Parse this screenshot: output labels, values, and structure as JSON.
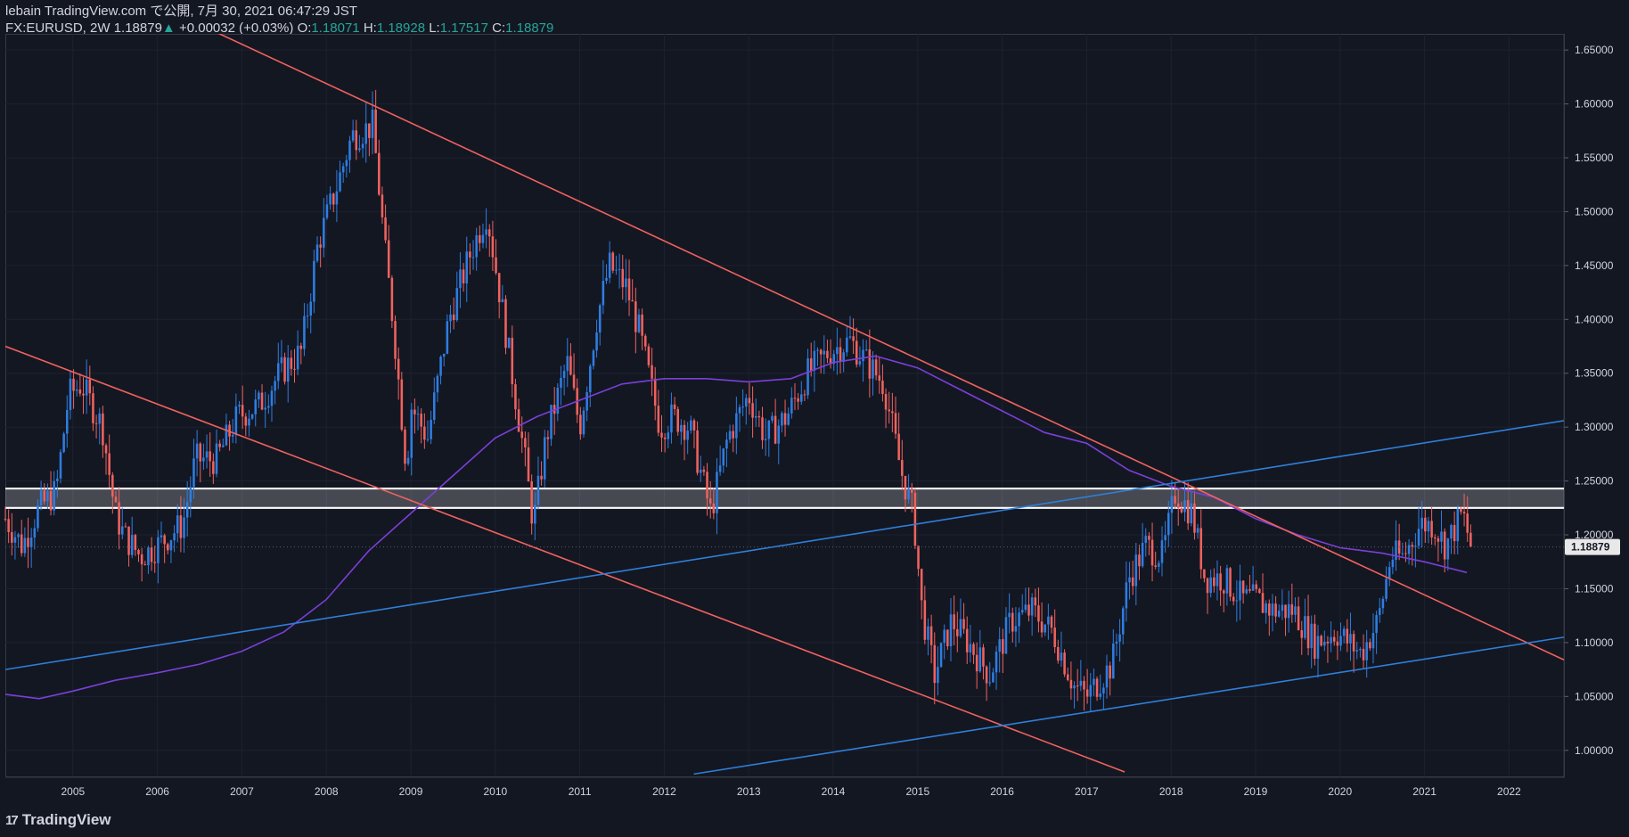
{
  "header": {
    "line1": "lebain TradingView.com で公開, 7月 30, 2021 06:47:29 JST",
    "symbol": "FX:EURUSD, 2W",
    "last": "1.18879",
    "arrow": "▲",
    "change": "+0.00032 (+0.03%)",
    "o_label": "O:",
    "o_val": "1.18071",
    "h_label": "H:",
    "h_val": "1.18928",
    "l_label": "L:",
    "l_val": "1.17517",
    "c_label": "C:",
    "c_val": "1.18879"
  },
  "footer": {
    "logo_mark": "17",
    "brand": "TradingView"
  },
  "colors": {
    "background": "#131722",
    "bull": "#2e7de1",
    "bear": "#f0625e",
    "trend_red": "#f0625e",
    "trend_blue": "#2f7fd9",
    "ma": "#7b3fd8",
    "zone": "#ffffff",
    "axis_text": "#d1d4dc",
    "grid": "#1e2230"
  },
  "chart_data": {
    "type": "candlestick",
    "title": "FX:EURUSD, 2W",
    "current_price": 1.18879,
    "current_price_label": "1.18879",
    "ylim": [
      0.975,
      1.665
    ],
    "xlim": [
      2004.2,
      2022.65
    ],
    "y_ticks": [
      "1.00000",
      "1.05000",
      "1.10000",
      "1.15000",
      "1.20000",
      "1.25000",
      "1.30000",
      "1.35000",
      "1.40000",
      "1.45000",
      "1.50000",
      "1.55000",
      "1.60000",
      "1.65000"
    ],
    "x_ticks": [
      "2005",
      "2006",
      "2007",
      "2008",
      "2009",
      "2010",
      "2011",
      "2012",
      "2013",
      "2014",
      "2015",
      "2016",
      "2017",
      "2018",
      "2019",
      "2020",
      "2021",
      "2022"
    ],
    "price_path": [
      [
        2004.2,
        1.215
      ],
      [
        2004.4,
        1.19
      ],
      [
        2004.6,
        1.225
      ],
      [
        2004.8,
        1.24
      ],
      [
        2004.95,
        1.33
      ],
      [
        2005.1,
        1.34
      ],
      [
        2005.35,
        1.3
      ],
      [
        2005.5,
        1.22
      ],
      [
        2005.6,
        1.2
      ],
      [
        2005.8,
        1.18
      ],
      [
        2006.0,
        1.19
      ],
      [
        2006.3,
        1.21
      ],
      [
        2006.45,
        1.27
      ],
      [
        2006.7,
        1.27
      ],
      [
        2006.95,
        1.31
      ],
      [
        2007.2,
        1.32
      ],
      [
        2007.45,
        1.35
      ],
      [
        2007.7,
        1.37
      ],
      [
        2007.9,
        1.47
      ],
      [
        2008.15,
        1.53
      ],
      [
        2008.3,
        1.57
      ],
      [
        2008.55,
        1.58
      ],
      [
        2008.7,
        1.46
      ],
      [
        2008.8,
        1.39
      ],
      [
        2008.95,
        1.26
      ],
      [
        2009.0,
        1.32
      ],
      [
        2009.2,
        1.29
      ],
      [
        2009.45,
        1.4
      ],
      [
        2009.7,
        1.46
      ],
      [
        2009.9,
        1.5
      ],
      [
        2010.1,
        1.4
      ],
      [
        2010.35,
        1.27
      ],
      [
        2010.45,
        1.21
      ],
      [
        2010.6,
        1.29
      ],
      [
        2010.85,
        1.36
      ],
      [
        2011.0,
        1.3
      ],
      [
        2011.2,
        1.4
      ],
      [
        2011.35,
        1.45
      ],
      [
        2011.55,
        1.43
      ],
      [
        2011.7,
        1.39
      ],
      [
        2011.95,
        1.3
      ],
      [
        2012.1,
        1.31
      ],
      [
        2012.3,
        1.3
      ],
      [
        2012.55,
        1.22
      ],
      [
        2012.75,
        1.29
      ],
      [
        2013.0,
        1.33
      ],
      [
        2013.2,
        1.29
      ],
      [
        2013.45,
        1.31
      ],
      [
        2013.7,
        1.35
      ],
      [
        2013.95,
        1.37
      ],
      [
        2014.2,
        1.38
      ],
      [
        2014.4,
        1.36
      ],
      [
        2014.6,
        1.34
      ],
      [
        2014.8,
        1.26
      ],
      [
        2014.95,
        1.22
      ],
      [
        2015.05,
        1.13
      ],
      [
        2015.2,
        1.07
      ],
      [
        2015.4,
        1.12
      ],
      [
        2015.6,
        1.1
      ],
      [
        2015.85,
        1.07
      ],
      [
        2016.1,
        1.12
      ],
      [
        2016.35,
        1.13
      ],
      [
        2016.6,
        1.11
      ],
      [
        2016.85,
        1.06
      ],
      [
        2017.0,
        1.05
      ],
      [
        2017.3,
        1.08
      ],
      [
        2017.5,
        1.16
      ],
      [
        2017.7,
        1.19
      ],
      [
        2017.9,
        1.18
      ],
      [
        2018.05,
        1.24
      ],
      [
        2018.25,
        1.22
      ],
      [
        2018.4,
        1.16
      ],
      [
        2018.6,
        1.16
      ],
      [
        2018.85,
        1.14
      ],
      [
        2019.0,
        1.14
      ],
      [
        2019.2,
        1.13
      ],
      [
        2019.45,
        1.13
      ],
      [
        2019.7,
        1.1
      ],
      [
        2019.95,
        1.11
      ],
      [
        2020.1,
        1.1
      ],
      [
        2020.25,
        1.09
      ],
      [
        2020.45,
        1.12
      ],
      [
        2020.6,
        1.18
      ],
      [
        2020.75,
        1.18
      ],
      [
        2020.95,
        1.21
      ],
      [
        2021.1,
        1.21
      ],
      [
        2021.25,
        1.19
      ],
      [
        2021.45,
        1.22
      ],
      [
        2021.58,
        1.18
      ]
    ],
    "moving_average": [
      [
        2004.2,
        1.052
      ],
      [
        2004.6,
        1.048
      ],
      [
        2005.0,
        1.055
      ],
      [
        2005.5,
        1.065
      ],
      [
        2006.0,
        1.072
      ],
      [
        2006.5,
        1.08
      ],
      [
        2007.0,
        1.092
      ],
      [
        2007.5,
        1.11
      ],
      [
        2008.0,
        1.14
      ],
      [
        2008.5,
        1.185
      ],
      [
        2009.0,
        1.22
      ],
      [
        2009.5,
        1.255
      ],
      [
        2010.0,
        1.29
      ],
      [
        2010.5,
        1.31
      ],
      [
        2011.0,
        1.325
      ],
      [
        2011.5,
        1.34
      ],
      [
        2012.0,
        1.345
      ],
      [
        2012.5,
        1.345
      ],
      [
        2013.0,
        1.342
      ],
      [
        2013.5,
        1.345
      ],
      [
        2014.0,
        1.36
      ],
      [
        2014.5,
        1.366
      ],
      [
        2015.0,
        1.355
      ],
      [
        2015.5,
        1.335
      ],
      [
        2016.0,
        1.315
      ],
      [
        2016.5,
        1.295
      ],
      [
        2017.0,
        1.285
      ],
      [
        2017.5,
        1.26
      ],
      [
        2018.0,
        1.245
      ],
      [
        2018.5,
        1.235
      ],
      [
        2019.0,
        1.215
      ],
      [
        2019.5,
        1.2
      ],
      [
        2020.0,
        1.188
      ],
      [
        2020.5,
        1.183
      ],
      [
        2021.0,
        1.175
      ],
      [
        2021.5,
        1.165
      ]
    ],
    "trendlines": [
      {
        "name": "upper-falling-resistance",
        "color": "red",
        "points": [
          [
            2006.6,
            1.67
          ],
          [
            2022.65,
            1.084
          ]
        ]
      },
      {
        "name": "lower-falling-support",
        "color": "red",
        "points": [
          [
            2004.2,
            1.375
          ],
          [
            2017.45,
            0.98
          ]
        ]
      },
      {
        "name": "long-rising-line",
        "color": "blue",
        "points": [
          [
            2004.2,
            1.075
          ],
          [
            2022.65,
            1.306
          ]
        ]
      },
      {
        "name": "bottom-rising-line",
        "color": "blue",
        "points": [
          [
            2012.35,
            0.978
          ],
          [
            2022.65,
            1.105
          ]
        ]
      }
    ],
    "zone": {
      "name": "resistance-zone",
      "top": 1.243,
      "bottom": 1.225,
      "x_start": 2004.2,
      "x_end": 2022.65
    }
  }
}
